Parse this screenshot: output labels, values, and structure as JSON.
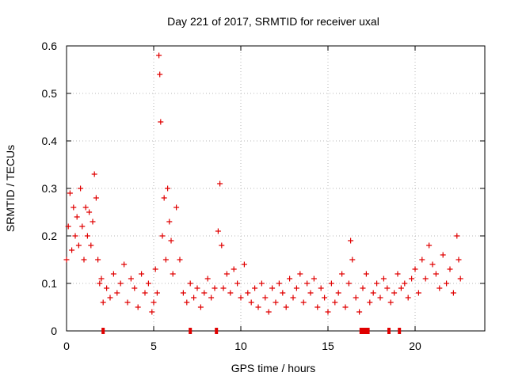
{
  "chart_data": {
    "type": "scatter",
    "title": "Day 221 of 2017, SRMTID for receiver uxal",
    "xlabel": "GPS time / hours",
    "ylabel": "SRMTID / TECUs",
    "xlim": [
      0,
      24
    ],
    "ylim": [
      0,
      0.6
    ],
    "x_ticks": [
      0,
      5,
      10,
      15,
      20
    ],
    "y_ticks": [
      0,
      0.1,
      0.2,
      0.3,
      0.4,
      0.5,
      0.6
    ],
    "x_tick_labels": [
      "0",
      "5",
      "10",
      "15",
      "20"
    ],
    "y_tick_labels": [
      "0",
      "0.1",
      "0.2",
      "0.3",
      "0.4",
      "0.5",
      "0.6"
    ],
    "grid": true,
    "marker": "+",
    "series_color": "#e00000",
    "series": [
      {
        "name": "SRMTID",
        "points": [
          [
            0.0,
            0.15
          ],
          [
            0.1,
            0.22
          ],
          [
            0.2,
            0.29
          ],
          [
            0.3,
            0.17
          ],
          [
            0.4,
            0.26
          ],
          [
            0.5,
            0.2
          ],
          [
            0.6,
            0.24
          ],
          [
            0.7,
            0.18
          ],
          [
            0.8,
            0.3
          ],
          [
            0.9,
            0.22
          ],
          [
            1.0,
            0.15
          ],
          [
            1.1,
            0.26
          ],
          [
            1.2,
            0.2
          ],
          [
            1.3,
            0.25
          ],
          [
            1.4,
            0.18
          ],
          [
            1.5,
            0.23
          ],
          [
            1.6,
            0.33
          ],
          [
            1.7,
            0.28
          ],
          [
            1.8,
            0.15
          ],
          [
            1.9,
            0.1
          ],
          [
            2.0,
            0.11
          ],
          [
            2.1,
            0.06
          ],
          [
            2.3,
            0.09
          ],
          [
            2.5,
            0.07
          ],
          [
            2.7,
            0.12
          ],
          [
            2.9,
            0.08
          ],
          [
            3.1,
            0.1
          ],
          [
            3.3,
            0.14
          ],
          [
            3.5,
            0.06
          ],
          [
            3.7,
            0.11
          ],
          [
            3.9,
            0.09
          ],
          [
            4.1,
            0.05
          ],
          [
            4.3,
            0.12
          ],
          [
            4.5,
            0.08
          ],
          [
            4.7,
            0.1
          ],
          [
            4.9,
            0.04
          ],
          [
            5.0,
            0.06
          ],
          [
            5.1,
            0.13
          ],
          [
            5.2,
            0.08
          ],
          [
            5.3,
            0.58
          ],
          [
            5.35,
            0.54
          ],
          [
            5.4,
            0.44
          ],
          [
            5.5,
            0.2
          ],
          [
            5.6,
            0.28
          ],
          [
            5.7,
            0.15
          ],
          [
            5.8,
            0.3
          ],
          [
            5.9,
            0.23
          ],
          [
            6.0,
            0.19
          ],
          [
            6.1,
            0.12
          ],
          [
            6.3,
            0.26
          ],
          [
            6.5,
            0.15
          ],
          [
            6.7,
            0.08
          ],
          [
            6.9,
            0.06
          ],
          [
            7.1,
            0.1
          ],
          [
            7.3,
            0.07
          ],
          [
            7.5,
            0.09
          ],
          [
            7.7,
            0.05
          ],
          [
            7.9,
            0.08
          ],
          [
            8.1,
            0.11
          ],
          [
            8.3,
            0.07
          ],
          [
            8.5,
            0.09
          ],
          [
            8.7,
            0.21
          ],
          [
            8.8,
            0.31
          ],
          [
            8.9,
            0.18
          ],
          [
            9.0,
            0.09
          ],
          [
            9.2,
            0.12
          ],
          [
            9.4,
            0.08
          ],
          [
            9.6,
            0.13
          ],
          [
            9.8,
            0.1
          ],
          [
            10.0,
            0.07
          ],
          [
            10.2,
            0.14
          ],
          [
            10.4,
            0.08
          ],
          [
            10.6,
            0.06
          ],
          [
            10.8,
            0.09
          ],
          [
            11.0,
            0.05
          ],
          [
            11.2,
            0.1
          ],
          [
            11.4,
            0.07
          ],
          [
            11.6,
            0.04
          ],
          [
            11.8,
            0.09
          ],
          [
            12.0,
            0.06
          ],
          [
            12.2,
            0.1
          ],
          [
            12.4,
            0.08
          ],
          [
            12.6,
            0.05
          ],
          [
            12.8,
            0.11
          ],
          [
            13.0,
            0.07
          ],
          [
            13.2,
            0.09
          ],
          [
            13.4,
            0.12
          ],
          [
            13.6,
            0.06
          ],
          [
            13.8,
            0.1
          ],
          [
            14.0,
            0.08
          ],
          [
            14.2,
            0.11
          ],
          [
            14.4,
            0.05
          ],
          [
            14.6,
            0.09
          ],
          [
            14.8,
            0.07
          ],
          [
            15.0,
            0.04
          ],
          [
            15.2,
            0.1
          ],
          [
            15.4,
            0.06
          ],
          [
            15.6,
            0.08
          ],
          [
            15.8,
            0.12
          ],
          [
            16.0,
            0.05
          ],
          [
            16.2,
            0.1
          ],
          [
            16.3,
            0.19
          ],
          [
            16.4,
            0.15
          ],
          [
            16.6,
            0.07
          ],
          [
            16.8,
            0.04
          ],
          [
            17.0,
            0.09
          ],
          [
            17.2,
            0.12
          ],
          [
            17.4,
            0.06
          ],
          [
            17.6,
            0.08
          ],
          [
            17.8,
            0.1
          ],
          [
            18.0,
            0.07
          ],
          [
            18.2,
            0.11
          ],
          [
            18.4,
            0.09
          ],
          [
            18.6,
            0.06
          ],
          [
            18.8,
            0.08
          ],
          [
            19.0,
            0.12
          ],
          [
            19.2,
            0.09
          ],
          [
            19.4,
            0.1
          ],
          [
            19.6,
            0.07
          ],
          [
            19.8,
            0.11
          ],
          [
            20.0,
            0.13
          ],
          [
            20.2,
            0.08
          ],
          [
            20.4,
            0.15
          ],
          [
            20.6,
            0.11
          ],
          [
            20.8,
            0.18
          ],
          [
            21.0,
            0.14
          ],
          [
            21.2,
            0.12
          ],
          [
            21.4,
            0.09
          ],
          [
            21.6,
            0.16
          ],
          [
            21.8,
            0.1
          ],
          [
            22.0,
            0.13
          ],
          [
            22.2,
            0.08
          ],
          [
            22.4,
            0.2
          ],
          [
            22.5,
            0.15
          ],
          [
            22.6,
            0.11
          ]
        ]
      }
    ],
    "marker_ticks_at_zero": [
      2.1,
      7.1,
      8.6,
      16.9,
      17.0,
      17.1,
      17.2,
      17.3,
      18.5,
      19.1
    ]
  }
}
